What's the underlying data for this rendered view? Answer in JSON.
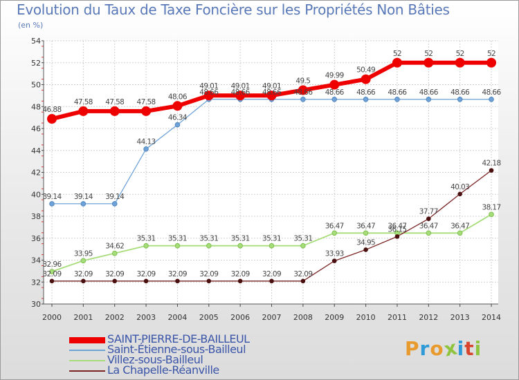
{
  "header": {
    "title": "Evolution du Taux de Taxe Foncière sur les Propriétés Non Bâties",
    "unit": "(en %)"
  },
  "logo": {
    "text": "Proxiti",
    "colors": [
      "#e89a2c",
      "#2e9ad8",
      "#e89a2c",
      "#8fc43e",
      "#2e9ad8",
      "#d8442c",
      "#8fc43e"
    ]
  },
  "chart_data": {
    "type": "line",
    "title": "Evolution du Taux de Taxe Foncière sur les Propriétés Non Bâties",
    "ylabel": "(en %)",
    "xlabel": "",
    "ylim": [
      30,
      54
    ],
    "yticks": [
      30,
      32,
      34,
      36,
      38,
      40,
      42,
      44,
      46,
      48,
      50,
      52,
      54
    ],
    "x": [
      2000,
      2001,
      2002,
      2003,
      2004,
      2005,
      2006,
      2007,
      2008,
      2009,
      2010,
      2011,
      2012,
      2013,
      2014
    ],
    "grid": true,
    "legend": "bottom-left",
    "series": [
      {
        "name": "SAINT-PIERRE-DE-BAILLEUL",
        "color": "#ee0000",
        "values": [
          46.88,
          47.58,
          47.58,
          47.58,
          48.06,
          49.01,
          49.01,
          49.01,
          49.5,
          49.99,
          50.49,
          52,
          52,
          52,
          52
        ],
        "labels": [
          "46.88",
          "47.58",
          "47.58",
          "47.58",
          "48.06",
          "49.01",
          "49.01",
          "49.01",
          "49.5",
          "49.99",
          "50.49",
          "52",
          "52",
          "52",
          "52"
        ]
      },
      {
        "name": "Saint-Étienne-sous-Bailleul",
        "color": "#6fa3d8",
        "values": [
          39.14,
          39.14,
          39.14,
          44.13,
          46.34,
          48.66,
          48.66,
          48.66,
          48.66,
          48.66,
          48.66,
          48.66,
          48.66,
          48.66,
          48.66
        ],
        "labels": [
          "39.14",
          "39.14",
          "39.14",
          "44.13",
          "46.34",
          "48.66",
          "48.66",
          "48.66",
          "48.66",
          "48.66",
          "48.66",
          "48.66",
          "48.66",
          "48.66",
          "48.66"
        ]
      },
      {
        "name": "Villez-sous-Bailleul",
        "color": "#a6dd7a",
        "values": [
          32.96,
          33.95,
          34.62,
          35.31,
          35.31,
          35.31,
          35.31,
          35.31,
          35.31,
          36.47,
          36.47,
          36.47,
          36.47,
          36.47,
          38.17
        ],
        "labels": [
          "32.96",
          "33.95",
          "34.62",
          "35.31",
          "35.31",
          "35.31",
          "35.31",
          "35.31",
          "35.31",
          "36.47",
          "36.47",
          "36.47",
          "36.47",
          "36.47",
          "38.17"
        ]
      },
      {
        "name": "La Chapelle-Réanville",
        "color": "#7a2424",
        "values": [
          32.09,
          32.09,
          32.09,
          32.09,
          32.09,
          32.09,
          32.09,
          32.09,
          32.09,
          33.93,
          34.95,
          36.15,
          37.77,
          40.03,
          42.18
        ],
        "labels": [
          "32.09",
          "32.09",
          "32.09",
          "32.09",
          "32.09",
          "32.09",
          "32.09",
          "32.09",
          "32.09",
          "33.93",
          "34.95",
          "36.15",
          "37.77",
          "40.03",
          "42.18"
        ]
      }
    ]
  }
}
